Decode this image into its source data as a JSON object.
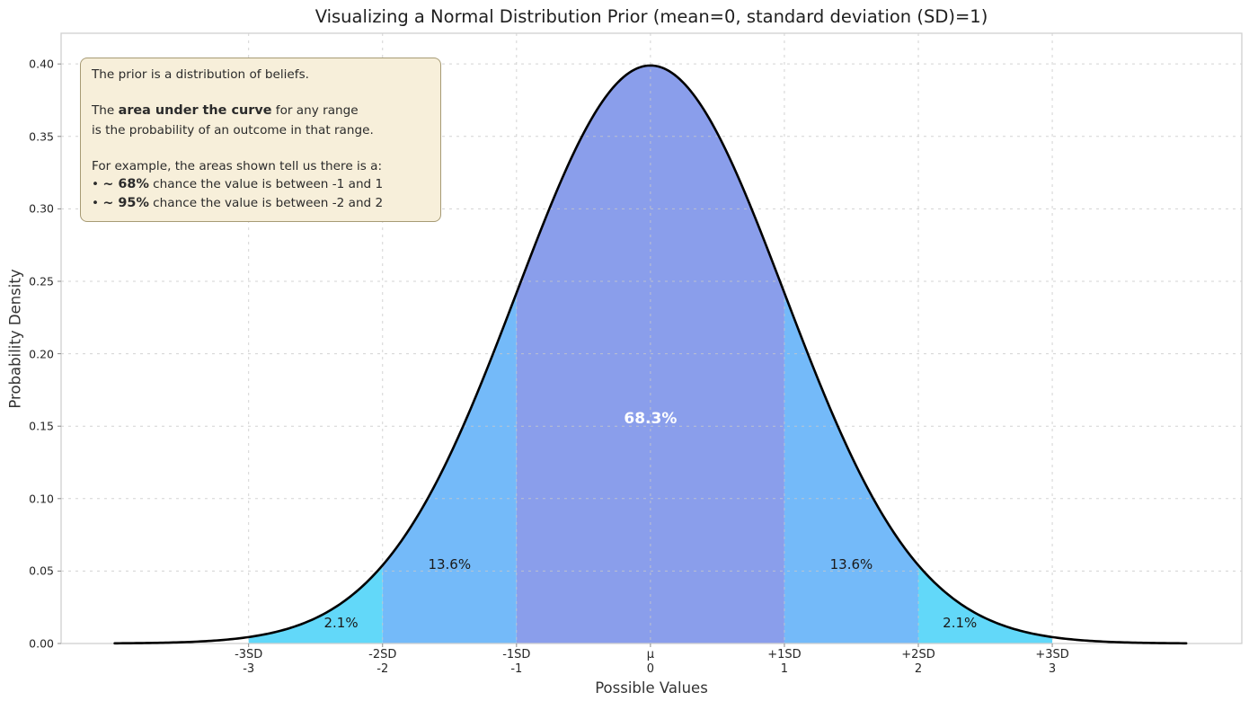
{
  "title": "Visualizing a Normal Distribution Prior (mean=0, standard deviation (SD)=1)",
  "annotation": {
    "lines": [
      [
        {
          "t": "The prior is a distribution of beliefs."
        }
      ],
      [],
      [
        {
          "t": "The "
        },
        {
          "t": "area under the curve",
          "b": true
        },
        {
          "t": " for any range"
        }
      ],
      [
        {
          "t": "is the probability of an outcome in that range."
        }
      ],
      [],
      [
        {
          "t": "For example, the areas shown tell us there is a:"
        }
      ],
      [
        {
          "t": " • "
        },
        {
          "t": "~ 68%",
          "b": true
        },
        {
          "t": " chance the value is between -1 and 1"
        }
      ],
      [
        {
          "t": " • "
        },
        {
          "t": "~ 95%",
          "b": true
        },
        {
          "t": " chance the value is between -2 and 2"
        }
      ]
    ]
  },
  "chart_data": {
    "type": "area",
    "title": "Visualizing a Normal Distribution Prior (mean=0, standard deviation (SD)=1)",
    "xlabel": "Possible Values",
    "ylabel": "Probability Density",
    "xlim": [
      -4.4,
      4.415
    ],
    "ylim": [
      0,
      0.4212
    ],
    "grid": true,
    "grid_color": "#c9c9c9",
    "spine_color": "#cfcfcf",
    "curve": {
      "distribution": "normal",
      "mean": 0,
      "sd": 1,
      "range": [
        -4,
        4
      ],
      "peak_density": 0.3989,
      "color": "#000000",
      "width": 2.6
    },
    "y_ticks": [
      {
        "v": 0.0,
        "label": "0.00"
      },
      {
        "v": 0.05,
        "label": "0.05"
      },
      {
        "v": 0.1,
        "label": "0.10"
      },
      {
        "v": 0.15,
        "label": "0.15"
      },
      {
        "v": 0.2,
        "label": "0.20"
      },
      {
        "v": 0.25,
        "label": "0.25"
      },
      {
        "v": 0.3,
        "label": "0.30"
      },
      {
        "v": 0.35,
        "label": "0.35"
      },
      {
        "v": 0.4,
        "label": "0.40"
      }
    ],
    "x_ticks": [
      {
        "v": -3,
        "sd_label": "-3SD",
        "value_label": "-3"
      },
      {
        "v": -2,
        "sd_label": "-2SD",
        "value_label": "-2"
      },
      {
        "v": -1,
        "sd_label": "-1SD",
        "value_label": "-1"
      },
      {
        "v": 0,
        "sd_label": "μ",
        "value_label": "0"
      },
      {
        "v": 1,
        "sd_label": "+1SD",
        "value_label": "1"
      },
      {
        "v": 2,
        "sd_label": "+2SD",
        "value_label": "2"
      },
      {
        "v": 3,
        "sd_label": "+3SD",
        "value_label": "3"
      }
    ],
    "regions": [
      {
        "from": -3,
        "to": -2,
        "probability_pct": 2.1,
        "label": "2.1%",
        "fill": "#62d8f9",
        "label_x": -2.31,
        "label_y": 0.0145,
        "big": false
      },
      {
        "from": -2,
        "to": -1,
        "probability_pct": 13.6,
        "label": "13.6%",
        "fill": "#74baf9",
        "label_x": -1.5,
        "label_y": 0.0545,
        "big": false
      },
      {
        "from": -1,
        "to": 1,
        "probability_pct": 68.3,
        "label": "68.3%",
        "fill": "#8a9eeb",
        "label_x": 0.0,
        "label_y": 0.155,
        "big": true
      },
      {
        "from": 1,
        "to": 2,
        "probability_pct": 13.6,
        "label": "13.6%",
        "fill": "#74baf9",
        "label_x": 1.5,
        "label_y": 0.0545,
        "big": false
      },
      {
        "from": 2,
        "to": 3,
        "probability_pct": 2.1,
        "label": "2.1%",
        "fill": "#62d8f9",
        "label_x": 2.31,
        "label_y": 0.0145,
        "big": false
      }
    ]
  }
}
